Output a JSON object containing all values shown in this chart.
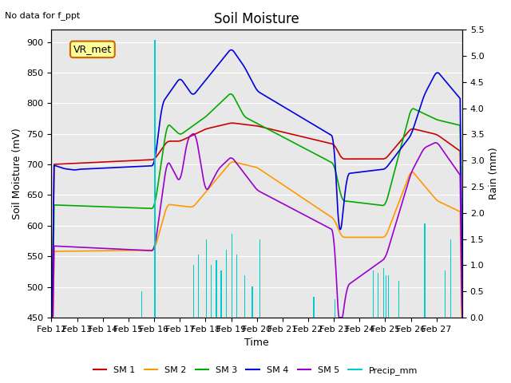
{
  "title": "Soil Moisture",
  "xlabel": "Time",
  "ylabel_left": "Soil Moisture (mV)",
  "ylabel_right": "Rain (mm)",
  "top_label": "No data for f_ppt",
  "station_label": "VR_met",
  "ylim_left": [
    450,
    920
  ],
  "ylim_right": [
    0.0,
    5.5
  ],
  "yticks_left": [
    450,
    500,
    550,
    600,
    650,
    700,
    750,
    800,
    850,
    900
  ],
  "yticks_right": [
    0.0,
    0.5,
    1.0,
    1.5,
    2.0,
    2.5,
    3.0,
    3.5,
    4.0,
    4.5,
    5.0,
    5.5
  ],
  "x_labels": [
    "Feb 12",
    "Feb 13",
    "Feb 14",
    "Feb 15",
    "Feb 16",
    "Feb 17",
    "Feb 18",
    "Feb 19",
    "Feb 20",
    "Feb 21",
    "Feb 22",
    "Feb 23",
    "Feb 24",
    "Feb 25",
    "Feb 26",
    "Feb 27"
  ],
  "colors": {
    "SM1": "#cc0000",
    "SM2": "#ff9900",
    "SM3": "#00aa00",
    "SM4": "#0000dd",
    "SM5": "#9900cc",
    "precip": "#00cccc",
    "background": "#e8e8e8"
  },
  "legend_entries": [
    "SM 1",
    "SM 2",
    "SM 3",
    "SM 4",
    "SM 5",
    "Precip_mm"
  ]
}
